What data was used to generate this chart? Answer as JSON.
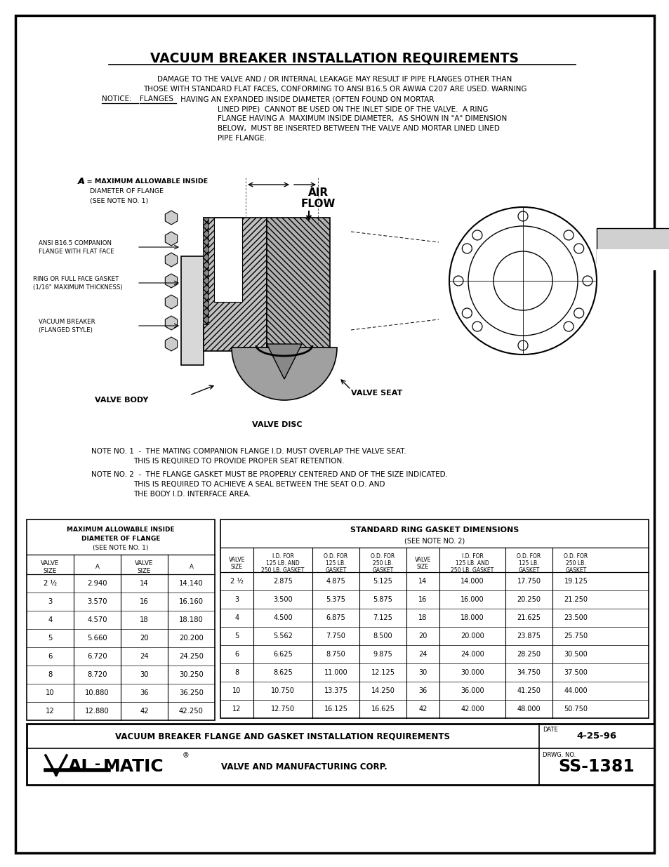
{
  "title": "VACUUM BREAKER INSTALLATION REQUIREMENTS",
  "warn1": "DAMAGE TO THE VALVE AND / OR INTERNAL LEAKAGE MAY RESULT IF PIPE FLANGES OTHER THAN",
  "warn2": "THOSE WITH STANDARD FLAT FACES, CONFORMING TO ANSI B16.5 OR AWWA C207 ARE USED. WARNING",
  "warn3": "NOTICE:  FLANGES HAVING AN EXPANDED INSIDE DIAMETER (OFTEN FOUND ON MORTAR",
  "warn4": "LINED PIPE)  CANNOT BE USED ON THE INLET SIDE OF THE VALVE.  A RING",
  "warn5": "FLANGE HAVING A  MAXIMUM INSIDE DIAMETER,  AS SHOWN IN \"A\" DIMENSION",
  "warn6": "BELOW,  MUST BE INSERTED BETWEEN THE VALVE AND MORTAR LINED LINED",
  "warn7": "PIPE FLANGE.",
  "note1a": "NOTE NO. 1  -  THE MATING COMPANION FLANGE I.D. MUST OVERLAP THE VALVE SEAT.",
  "note1b": "THIS IS REQUIRED TO PROVIDE PROPER SEAT RETENTION.",
  "note2a": "NOTE NO. 2  -  THE FLANGE GASKET MUST BE PROPERLY CENTERED AND OF THE SIZE INDICATED.",
  "note2b": "THIS IS REQUIRED TO ACHIEVE A SEAL BETWEEN THE SEAT O.D. AND",
  "note2c": "THE BODY I.D. INTERFACE AREA.",
  "label_a": "A = MAXIMUM ALLOWABLE INSIDE",
  "label_a2": "DIAMETER OF FLANGE",
  "label_a3": "(SEE NOTE NO. 1)",
  "label_ansi1": "ANSI B16.5 COMPANION",
  "label_ansi2": "FLANGE WITH FLAT FACE",
  "label_ring1": "RING OR FULL FACE GASKET",
  "label_ring2": "(1/16\" MAXIMUM THICKNESS)",
  "label_vb1": "VACUUM BREAKER",
  "label_vb2": "(FLANGED STYLE)",
  "label_valve_body": "VALVE BODY",
  "label_valve_seat": "VALVE SEAT",
  "label_valve_disc": "VALVE DISC",
  "label_air": "AIR",
  "label_flow": "FLOW",
  "t1_header1": "MAXIMUM ALLOWABLE INSIDE",
  "t1_header2": "DIAMETER OF FLANGE",
  "t1_header3": "(SEE NOTE NO. 1)",
  "t1_col1": "VALVE\nSIZE",
  "t1_col2": "A",
  "t1_col3": "VALVE\nSIZE",
  "t1_col4": "A",
  "table1_data": [
    [
      "2 ½",
      "2.940",
      "14",
      "14.140"
    ],
    [
      "3",
      "3.570",
      "16",
      "16.160"
    ],
    [
      "4",
      "4.570",
      "18",
      "18.180"
    ],
    [
      "5",
      "5.660",
      "20",
      "20.200"
    ],
    [
      "6",
      "6.720",
      "24",
      "24.250"
    ],
    [
      "8",
      "8.720",
      "30",
      "30.250"
    ],
    [
      "10",
      "10.880",
      "36",
      "36.250"
    ],
    [
      "12",
      "12.880",
      "42",
      "42.250"
    ]
  ],
  "t2_title1": "STANDARD RING GASKET DIMENSIONS",
  "t2_title2": "(SEE NOTE NO. 2)",
  "t2_h1": "VALVE\nSIZE",
  "t2_h2": "I.D. FOR\n125 LB. AND\n250 LB. GASKET",
  "t2_h3": "O.D. FOR\n125 LB.\nGASKET",
  "t2_h4": "O.D. FOR\n250 LB.\nGASKET",
  "t2_h5": "VALVE\nSIZE",
  "t2_h6": "I.D. FOR\n125 LB. AND\n250 LB. GASKET",
  "t2_h7": "O.D. FOR\n125 LB.\nGASKET",
  "t2_h8": "O.D. FOR\n250 LB.\nGASKET",
  "table2_data": [
    [
      "2 ½",
      "2.875",
      "4.875",
      "5.125",
      "14",
      "14.000",
      "17.750",
      "19.125"
    ],
    [
      "3",
      "3.500",
      "5.375",
      "5.875",
      "16",
      "16.000",
      "20.250",
      "21.250"
    ],
    [
      "4",
      "4.500",
      "6.875",
      "7.125",
      "18",
      "18.000",
      "21.625",
      "23.500"
    ],
    [
      "5",
      "5.562",
      "7.750",
      "8.500",
      "20",
      "20.000",
      "23.875",
      "25.750"
    ],
    [
      "6",
      "6.625",
      "8.750",
      "9.875",
      "24",
      "24.000",
      "28.250",
      "30.500"
    ],
    [
      "8",
      "8.625",
      "11.000",
      "12.125",
      "30",
      "30.000",
      "34.750",
      "37.500"
    ],
    [
      "10",
      "10.750",
      "13.375",
      "14.250",
      "36",
      "36.000",
      "41.250",
      "44.000"
    ],
    [
      "12",
      "12.750",
      "16.125",
      "16.625",
      "42",
      "42.000",
      "48.000",
      "50.750"
    ]
  ],
  "footer_title": "VACUUM BREAKER FLANGE AND GASKET INSTALLATION REQUIREMENTS",
  "footer_date_lbl": "DATE",
  "footer_date": "4-25-96",
  "footer_drwg_lbl": "DRWG. NO.",
  "footer_num": "SS-1381",
  "company": "VALVE AND MANUFACTURING CORP."
}
